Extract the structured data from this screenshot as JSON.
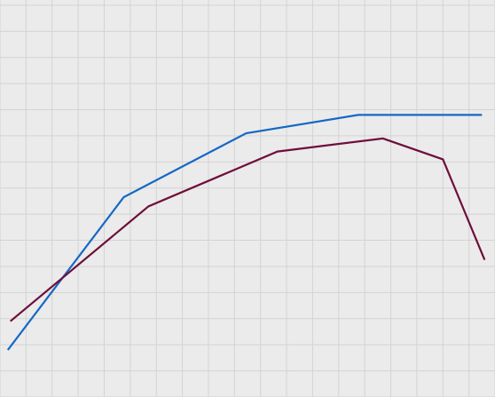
{
  "chart_data": {
    "type": "line",
    "title": "",
    "xlabel": "",
    "ylabel": "",
    "grid": true,
    "legend": "none",
    "background_color": "#ebebeb",
    "grid_color": "#d3d3d3",
    "xlim": [
      0,
      19
    ],
    "ylim": [
      0,
      15.2
    ],
    "series": [
      {
        "color": "#1668c4",
        "points": [
          [
            0.3,
            1.8
          ],
          [
            4.75,
            7.65
          ],
          [
            9.45,
            10.1
          ],
          [
            13.75,
            10.8
          ],
          [
            18.5,
            10.8
          ]
        ]
      },
      {
        "color": "#6e0f3a",
        "points": [
          [
            0.4,
            2.9
          ],
          [
            5.7,
            7.3
          ],
          [
            10.65,
            9.4
          ],
          [
            14.7,
            9.9
          ],
          [
            17,
            9.1
          ],
          [
            18.6,
            5.25
          ]
        ]
      }
    ]
  }
}
